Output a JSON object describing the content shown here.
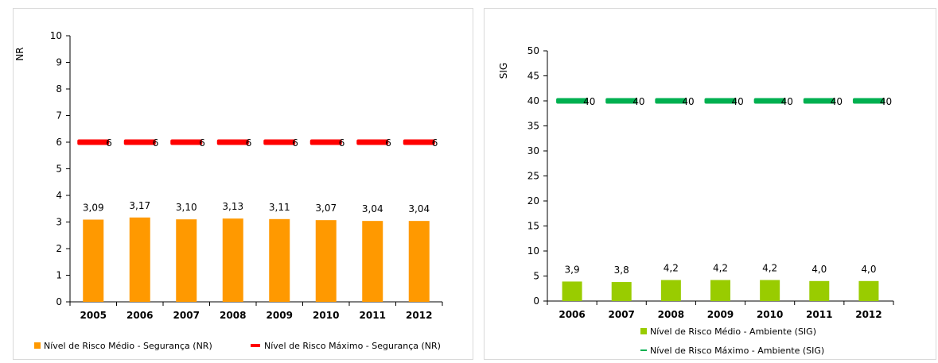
{
  "colors": {
    "nr_bar": "#FF9900",
    "nr_max": "#FF0000",
    "sig_bar": "#99CC00",
    "sig_max": "#00B050"
  },
  "chart_data": [
    {
      "type": "bar",
      "categories": [
        "2005",
        "2006",
        "2007",
        "2008",
        "2009",
        "2010",
        "2011",
        "2012"
      ],
      "ylabel": "NR",
      "ylim": [
        0,
        10
      ],
      "yticks": [
        "0",
        "1",
        "2",
        "3",
        "4",
        "5",
        "6",
        "7",
        "8",
        "9",
        "10"
      ],
      "series": [
        {
          "name": "Nível de Risco Médio - Segurança (NR)",
          "kind": "bar",
          "values": [
            3.09,
            3.17,
            3.1,
            3.13,
            3.11,
            3.07,
            3.04,
            3.04
          ],
          "labels": [
            "3,09",
            "3,17",
            "3,10",
            "3,13",
            "3,11",
            "3,07",
            "3,04",
            "3,04"
          ]
        },
        {
          "name": "Nível de Risco Máximo - Segurança (NR)",
          "kind": "dash",
          "values": [
            6,
            6,
            6,
            6,
            6,
            6,
            6,
            6
          ],
          "labels": [
            "6",
            "6",
            "6",
            "6",
            "6",
            "6",
            "6",
            "6"
          ]
        }
      ],
      "legend": "bottom",
      "grid": false
    },
    {
      "type": "bar",
      "categories": [
        "2006",
        "2007",
        "2008",
        "2009",
        "2010",
        "2011",
        "2012"
      ],
      "ylabel": "SIG",
      "ylim": [
        0,
        50
      ],
      "yticks": [
        "0",
        "5",
        "10",
        "15",
        "20",
        "25",
        "30",
        "35",
        "40",
        "45",
        "50"
      ],
      "series": [
        {
          "name": "Nível de Risco Médio - Ambiente (SIG)",
          "kind": "bar",
          "values": [
            3.9,
            3.8,
            4.2,
            4.2,
            4.2,
            4.0,
            4.0
          ],
          "labels": [
            "3,9",
            "3,8",
            "4,2",
            "4,2",
            "4,2",
            "4,0",
            "4,0"
          ]
        },
        {
          "name": "Nível de Risco Máximo - Ambiente (SIG)",
          "kind": "dash",
          "values": [
            40,
            40,
            40,
            40,
            40,
            40,
            40
          ],
          "labels": [
            "40",
            "40",
            "40",
            "40",
            "40",
            "40",
            "40"
          ]
        }
      ],
      "legend": "bottom",
      "grid": false
    }
  ]
}
